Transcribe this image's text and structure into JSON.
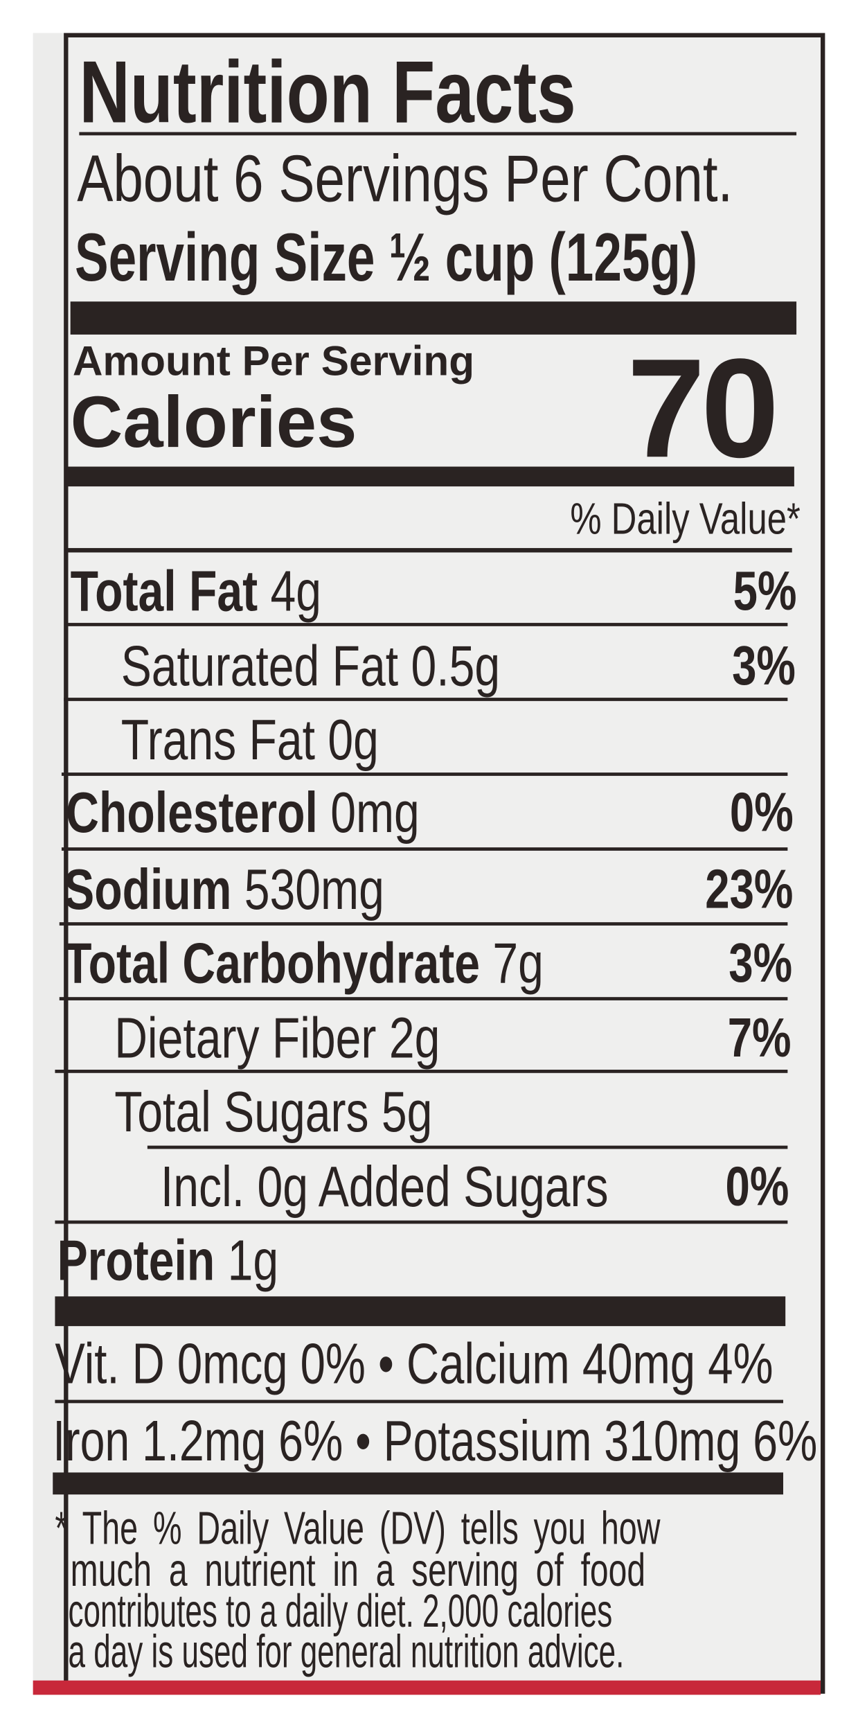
{
  "title": "Nutrition Facts",
  "servings_per_container": "About 6 Servings Per Cont.",
  "serving_size": {
    "label": "Serving Size",
    "value": "½ cup (125g)"
  },
  "amount_per_serving": "Amount Per Serving",
  "calories": {
    "label": "Calories",
    "value": "70"
  },
  "daily_value_header": "% Daily Value*",
  "nutrients": [
    {
      "name": "Total Fat",
      "amount": "4g",
      "dv": "5%"
    },
    {
      "name": "Saturated Fat",
      "amount": "0.5g",
      "dv": "3%"
    },
    {
      "name": "Trans Fat",
      "amount": "0g",
      "dv": ""
    },
    {
      "name": "Cholesterol",
      "amount": "0mg",
      "dv": "0%"
    },
    {
      "name": "Sodium",
      "amount": "530mg",
      "dv": "23%"
    },
    {
      "name": "Total Carbohydrate",
      "amount": "7g",
      "dv": "3%"
    },
    {
      "name": "Dietary Fiber",
      "amount": "2g",
      "dv": "7%"
    },
    {
      "name": "Total Sugars",
      "amount": "5g",
      "dv": ""
    },
    {
      "name": "Incl. 0g Added Sugars",
      "amount": "",
      "dv": "0%"
    },
    {
      "name": "Protein",
      "amount": "1g",
      "dv": ""
    }
  ],
  "vitamins": [
    "Vit. D 0mcg 0% • Calcium 40mg 4%",
    "Iron 1.2mg 6% • Potassium 310mg 6%"
  ],
  "footnote": [
    "* The % Daily Value (DV) tells you how",
    "much a nutrient in a serving of food",
    "contributes to a daily diet. 2,000 calories",
    "a day is used for general nutrition advice."
  ],
  "colors": {
    "ink": "#2a2322",
    "paper": "#efefee",
    "package_red": "#c8283a"
  }
}
